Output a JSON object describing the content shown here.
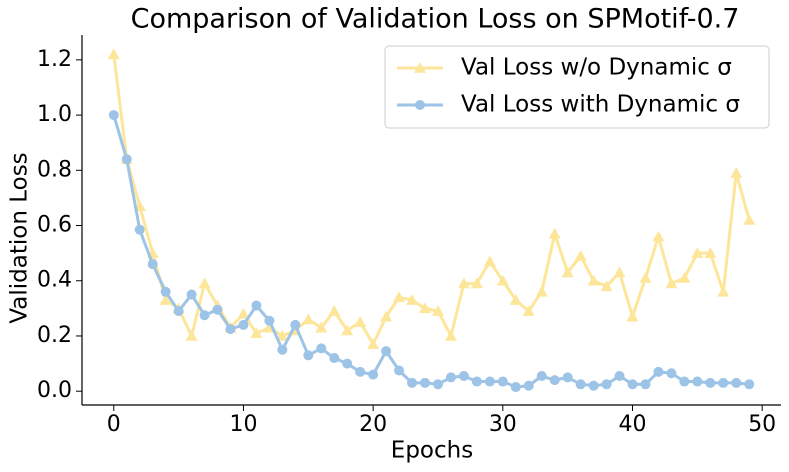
{
  "chart_data": {
    "type": "line",
    "title": "Comparison of Validation Loss on SPMotif-0.7",
    "x_label": "Epochs",
    "y_label": "Validation Loss",
    "x": [
      0,
      1,
      2,
      3,
      4,
      5,
      6,
      7,
      8,
      9,
      10,
      11,
      12,
      13,
      14,
      15,
      16,
      17,
      18,
      19,
      20,
      21,
      22,
      23,
      24,
      25,
      26,
      27,
      28,
      29,
      30,
      31,
      32,
      33,
      34,
      35,
      36,
      37,
      38,
      39,
      40,
      41,
      42,
      43,
      44,
      45,
      46,
      47,
      48,
      49
    ],
    "series": [
      {
        "name": "Val Loss w/o Dynamic σ",
        "color": "#fde69a",
        "marker": "triangle",
        "values": [
          1.22,
          0.84,
          0.67,
          0.5,
          0.33,
          0.3,
          0.2,
          0.39,
          0.31,
          0.23,
          0.28,
          0.21,
          0.23,
          0.2,
          0.22,
          0.26,
          0.23,
          0.29,
          0.22,
          0.25,
          0.17,
          0.27,
          0.34,
          0.33,
          0.3,
          0.29,
          0.2,
          0.39,
          0.39,
          0.47,
          0.4,
          0.33,
          0.29,
          0.36,
          0.57,
          0.43,
          0.49,
          0.4,
          0.38,
          0.43,
          0.27,
          0.41,
          0.56,
          0.39,
          0.41,
          0.5,
          0.5,
          0.36,
          0.79,
          0.62
        ]
      },
      {
        "name": "Val Loss with Dynamic σ",
        "color": "#9dc3e6",
        "marker": "circle",
        "values": [
          1.0,
          0.84,
          0.585,
          0.46,
          0.36,
          0.29,
          0.35,
          0.275,
          0.295,
          0.225,
          0.24,
          0.31,
          0.255,
          0.15,
          0.24,
          0.13,
          0.155,
          0.12,
          0.1,
          0.07,
          0.06,
          0.145,
          0.075,
          0.03,
          0.03,
          0.025,
          0.05,
          0.055,
          0.035,
          0.035,
          0.035,
          0.015,
          0.02,
          0.055,
          0.04,
          0.05,
          0.025,
          0.02,
          0.025,
          0.055,
          0.025,
          0.025,
          0.07,
          0.065,
          0.035,
          0.035,
          0.03,
          0.03,
          0.03,
          0.025
        ]
      }
    ],
    "xlim": [
      -2.45,
      51.45
    ],
    "ylim": [
      -0.05,
      1.29
    ],
    "xticks": [
      0,
      10,
      20,
      30,
      40,
      50
    ],
    "yticks": [
      {
        "value": 0,
        "label": "0.0"
      },
      0.2,
      0.4,
      0.6,
      0.8,
      {
        "value": 1,
        "label": "1.0"
      },
      1.2
    ],
    "legend": "upper right"
  }
}
